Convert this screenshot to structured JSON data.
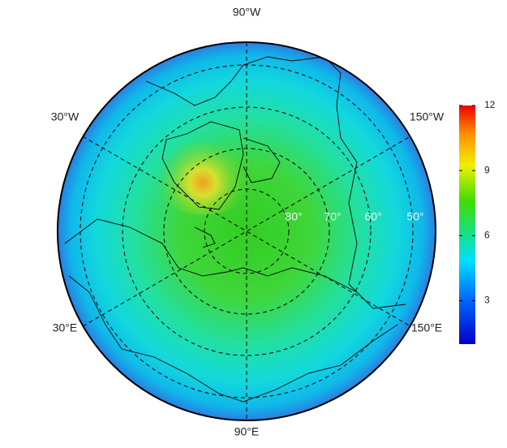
{
  "map": {
    "longitude_labels": {
      "top": "90°W",
      "upper_right": "150°W",
      "lower_right": "150°E",
      "bottom": "90°E",
      "lower_left": "30°E",
      "upper_left": "30°W"
    },
    "latitude_labels": [
      "80°",
      "70°",
      "60°",
      "50°"
    ],
    "colorbar": {
      "range": [
        1,
        12
      ],
      "ticks": [
        3,
        6,
        9,
        12
      ]
    }
  }
}
